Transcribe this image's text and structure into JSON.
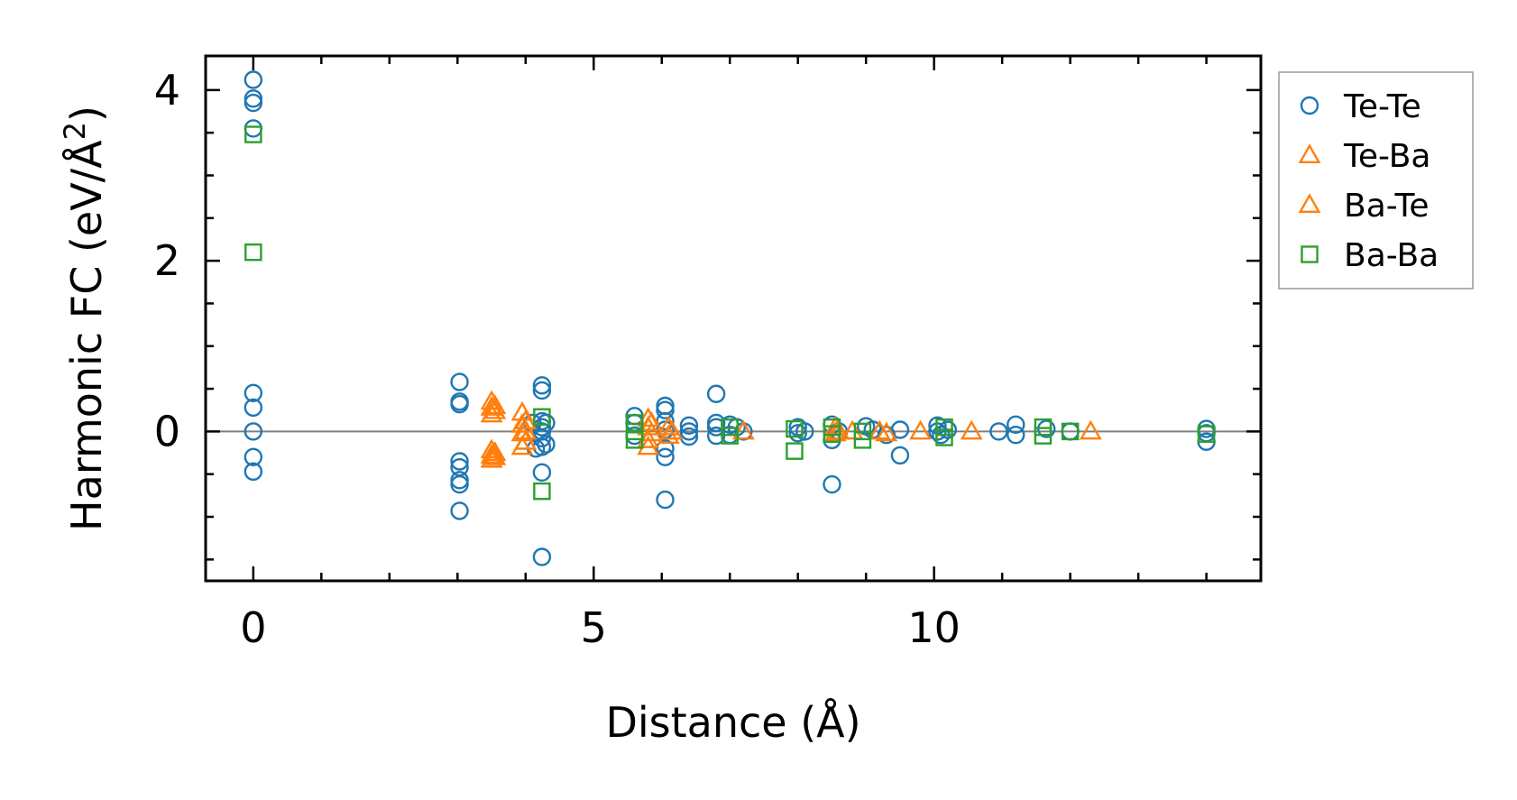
{
  "chart_data": {
    "type": "scatter",
    "title": "",
    "xlabel": "Distance (Å)",
    "ylabel": "Harmonic FC (eV/Å²)",
    "ylabel_parts": {
      "pre": "Harmonic FC (eV/Å",
      "sup": "2",
      "post": ")"
    },
    "xlim": [
      -0.7,
      14.8
    ],
    "ylim": [
      -1.75,
      4.4
    ],
    "x_ticks": [
      0,
      5,
      10
    ],
    "x_ticklabels": [
      "0",
      "5",
      "10"
    ],
    "y_ticks": [
      0,
      2,
      4
    ],
    "y_ticklabels": [
      "0",
      "2",
      "4"
    ],
    "zero_line": 0,
    "legend_position": "outside-right-top",
    "series": [
      {
        "name": "Te-Te",
        "marker": "circle",
        "color": "#1f77b4",
        "points": [
          [
            0,
            4.12
          ],
          [
            0,
            3.9
          ],
          [
            0,
            3.85
          ],
          [
            0,
            3.55
          ],
          [
            0,
            0.45
          ],
          [
            0,
            0.28
          ],
          [
            0,
            0.0
          ],
          [
            0,
            -0.3
          ],
          [
            0,
            -0.47
          ],
          [
            3.03,
            0.58
          ],
          [
            3.03,
            0.35
          ],
          [
            3.03,
            0.32
          ],
          [
            3.03,
            -0.35
          ],
          [
            3.03,
            -0.42
          ],
          [
            3.03,
            -0.57
          ],
          [
            3.03,
            -0.62
          ],
          [
            3.03,
            -0.93
          ],
          [
            4.24,
            0.54
          ],
          [
            4.24,
            0.48
          ],
          [
            4.24,
            0.12
          ],
          [
            4.24,
            0.05
          ],
          [
            4.24,
            0.0
          ],
          [
            4.24,
            -0.08
          ],
          [
            4.24,
            -0.18
          ],
          [
            4.24,
            -0.48
          ],
          [
            4.24,
            -1.47
          ],
          [
            4.1,
            0.1
          ],
          [
            4.15,
            -0.2
          ],
          [
            4.3,
            0.1
          ],
          [
            4.3,
            -0.15
          ],
          [
            5.6,
            0.18
          ],
          [
            5.6,
            0.1
          ],
          [
            5.6,
            -0.05
          ],
          [
            6.05,
            0.3
          ],
          [
            6.05,
            0.25
          ],
          [
            6.05,
            0.12
          ],
          [
            6.05,
            0.02
          ],
          [
            6.05,
            -0.2
          ],
          [
            6.05,
            -0.3
          ],
          [
            6.05,
            -0.8
          ],
          [
            6.4,
            0.07
          ],
          [
            6.4,
            0.0
          ],
          [
            6.4,
            -0.06
          ],
          [
            6.8,
            0.44
          ],
          [
            6.8,
            0.1
          ],
          [
            6.8,
            0.05
          ],
          [
            6.8,
            -0.05
          ],
          [
            7.0,
            0.08
          ],
          [
            7.0,
            -0.04
          ],
          [
            7.1,
            0.05
          ],
          [
            7.2,
            0.0
          ],
          [
            8.0,
            0.05
          ],
          [
            8.0,
            -0.02
          ],
          [
            8.1,
            0.0
          ],
          [
            8.5,
            0.08
          ],
          [
            8.5,
            -0.1
          ],
          [
            8.5,
            -0.62
          ],
          [
            8.6,
            0.0
          ],
          [
            9.0,
            0.06
          ],
          [
            9.1,
            0.02
          ],
          [
            9.3,
            -0.04
          ],
          [
            9.5,
            0.02
          ],
          [
            9.5,
            -0.28
          ],
          [
            10.05,
            0.07
          ],
          [
            10.05,
            0.0
          ],
          [
            10.1,
            -0.04
          ],
          [
            10.2,
            0.02
          ],
          [
            10.95,
            0.0
          ],
          [
            11.2,
            0.08
          ],
          [
            11.2,
            -0.04
          ],
          [
            11.65,
            0.03
          ],
          [
            12.0,
            0.0
          ],
          [
            14.0,
            0.03
          ],
          [
            14.0,
            -0.02
          ],
          [
            14.0,
            -0.12
          ]
        ]
      },
      {
        "name": "Te-Ba",
        "marker": "triangle",
        "color": "#ff7f0e",
        "points": [
          [
            3.5,
            0.35
          ],
          [
            3.5,
            0.28
          ],
          [
            3.5,
            0.2
          ],
          [
            3.5,
            -0.22
          ],
          [
            3.5,
            -0.28
          ],
          [
            3.5,
            -0.33
          ],
          [
            3.95,
            0.22
          ],
          [
            3.95,
            0.08
          ],
          [
            3.95,
            -0.02
          ],
          [
            3.95,
            -0.18
          ],
          [
            5.8,
            0.15
          ],
          [
            5.8,
            0.05
          ],
          [
            5.8,
            -0.1
          ],
          [
            5.8,
            -0.18
          ],
          [
            6.1,
            0.05
          ],
          [
            6.1,
            -0.05
          ],
          [
            7.2,
            0.0
          ],
          [
            8.55,
            0.05
          ],
          [
            8.55,
            -0.02
          ],
          [
            8.8,
            0.0
          ],
          [
            9.2,
            0.0
          ],
          [
            9.8,
            0.0
          ],
          [
            10.55,
            0.0
          ],
          [
            12.3,
            0.0
          ]
        ]
      },
      {
        "name": "Ba-Te",
        "marker": "triangle",
        "color": "#ff7f0e",
        "points": [
          [
            3.55,
            0.3
          ],
          [
            3.55,
            0.24
          ],
          [
            3.55,
            -0.25
          ],
          [
            3.55,
            -0.3
          ],
          [
            4.0,
            0.12
          ],
          [
            4.0,
            0.0
          ],
          [
            4.0,
            -0.12
          ],
          [
            5.85,
            0.1
          ],
          [
            5.85,
            -0.02
          ],
          [
            6.15,
            0.0
          ],
          [
            8.6,
            0.0
          ],
          [
            9.3,
            -0.02
          ]
        ]
      },
      {
        "name": "Ba-Ba",
        "marker": "square",
        "color": "#2ca02c",
        "points": [
          [
            0,
            3.48
          ],
          [
            0,
            2.1
          ],
          [
            4.24,
            0.17
          ],
          [
            4.24,
            -0.7
          ],
          [
            5.6,
            0.1
          ],
          [
            5.6,
            0.0
          ],
          [
            5.6,
            -0.1
          ],
          [
            7.0,
            0.05
          ],
          [
            7.0,
            -0.05
          ],
          [
            7.95,
            0.03
          ],
          [
            7.95,
            -0.23
          ],
          [
            8.5,
            0.05
          ],
          [
            8.5,
            -0.03
          ],
          [
            8.95,
            0.0
          ],
          [
            8.95,
            -0.1
          ],
          [
            10.15,
            0.05
          ],
          [
            10.15,
            -0.07
          ],
          [
            11.6,
            0.05
          ],
          [
            11.6,
            -0.05
          ],
          [
            12.0,
            0.0
          ],
          [
            14.0,
            -0.03
          ]
        ]
      }
    ]
  }
}
